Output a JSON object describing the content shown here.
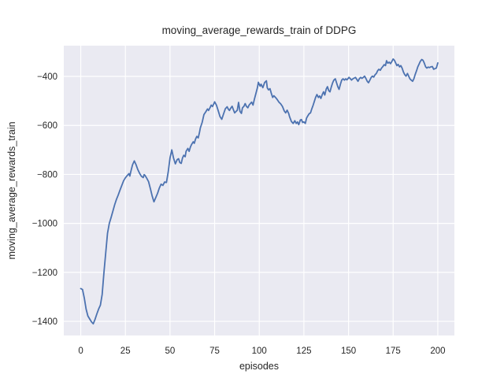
{
  "figure": {
    "background": "#ffffff",
    "plot_background": "#eaeaf2",
    "grid_color": "#ffffff",
    "text_color": "#262626"
  },
  "chart_data": {
    "type": "line",
    "title": "moving_average_rewards_train of DDPG",
    "xlabel": "episodes",
    "ylabel": "moving_average_rewards_train",
    "grid": true,
    "legend": false,
    "xlim": [
      -9.5,
      209.3
    ],
    "ylim": [
      -1457.6,
      -274.6
    ],
    "x_ticks": [
      {
        "v": 0,
        "label": "0"
      },
      {
        "v": 25,
        "label": "25"
      },
      {
        "v": 50,
        "label": "50"
      },
      {
        "v": 75,
        "label": "75"
      },
      {
        "v": 100,
        "label": "100"
      },
      {
        "v": 125,
        "label": "125"
      },
      {
        "v": 150,
        "label": "150"
      },
      {
        "v": 175,
        "label": "175"
      },
      {
        "v": 200,
        "label": "200"
      }
    ],
    "y_ticks": [
      {
        "v": -400,
        "label": "−400"
      },
      {
        "v": -600,
        "label": "−600"
      },
      {
        "v": -800,
        "label": "−800"
      },
      {
        "v": -1000,
        "label": "−1000"
      },
      {
        "v": -1200,
        "label": "−1200"
      },
      {
        "v": -1400,
        "label": "−1400"
      }
    ],
    "series": [
      {
        "name": "moving_average_rewards_train",
        "color": "#4c72b0",
        "line_width": 1.8,
        "points": [
          [
            0,
            -1266
          ],
          [
            1,
            -1270
          ],
          [
            2,
            -1305
          ],
          [
            3,
            -1350
          ],
          [
            4,
            -1378
          ],
          [
            5,
            -1390
          ],
          [
            6,
            -1402
          ],
          [
            7,
            -1410
          ],
          [
            8,
            -1392
          ],
          [
            9,
            -1370
          ],
          [
            10,
            -1350
          ],
          [
            11,
            -1334
          ],
          [
            12,
            -1290
          ],
          [
            13,
            -1200
          ],
          [
            14,
            -1120
          ],
          [
            15,
            -1040
          ],
          [
            16,
            -1000
          ],
          [
            17,
            -976
          ],
          [
            18,
            -950
          ],
          [
            19,
            -924
          ],
          [
            20,
            -902
          ],
          [
            21,
            -884
          ],
          [
            22,
            -864
          ],
          [
            23,
            -845
          ],
          [
            24,
            -826
          ],
          [
            25,
            -814
          ],
          [
            26,
            -805
          ],
          [
            27,
            -797
          ],
          [
            27.5,
            -807
          ],
          [
            28,
            -790
          ],
          [
            29,
            -761
          ],
          [
            30,
            -745
          ],
          [
            31,
            -761
          ],
          [
            32,
            -781
          ],
          [
            33,
            -796
          ],
          [
            34,
            -808
          ],
          [
            35,
            -813
          ],
          [
            35.5,
            -801
          ],
          [
            36,
            -804
          ],
          [
            37,
            -816
          ],
          [
            38,
            -830
          ],
          [
            39,
            -858
          ],
          [
            40,
            -888
          ],
          [
            41,
            -912
          ],
          [
            42,
            -895
          ],
          [
            43,
            -878
          ],
          [
            44,
            -856
          ],
          [
            45,
            -840
          ],
          [
            46,
            -845
          ],
          [
            47,
            -831
          ],
          [
            48,
            -833
          ],
          [
            49,
            -790
          ],
          [
            50,
            -733
          ],
          [
            51,
            -700
          ],
          [
            52,
            -734
          ],
          [
            53,
            -757
          ],
          [
            54,
            -740
          ],
          [
            54.8,
            -736
          ],
          [
            55.5,
            -752
          ],
          [
            56.3,
            -755
          ],
          [
            57,
            -733
          ],
          [
            57.7,
            -722
          ],
          [
            58.5,
            -728
          ],
          [
            59,
            -706
          ],
          [
            60,
            -694
          ],
          [
            60.7,
            -706
          ],
          [
            61.4,
            -689
          ],
          [
            62,
            -679
          ],
          [
            63,
            -667
          ],
          [
            63.6,
            -673
          ],
          [
            64.3,
            -656
          ],
          [
            65,
            -645
          ],
          [
            65.8,
            -651
          ],
          [
            66.5,
            -629
          ],
          [
            67,
            -610
          ],
          [
            68,
            -588
          ],
          [
            69,
            -556
          ],
          [
            70,
            -545
          ],
          [
            71,
            -533
          ],
          [
            71.6,
            -539
          ],
          [
            72.4,
            -528
          ],
          [
            73.1,
            -517
          ],
          [
            73.8,
            -523
          ],
          [
            74.6,
            -511
          ],
          [
            75,
            -504
          ],
          [
            76,
            -517
          ],
          [
            77,
            -540
          ],
          [
            78,
            -564
          ],
          [
            79,
            -575
          ],
          [
            80,
            -553
          ],
          [
            81,
            -532
          ],
          [
            82,
            -524
          ],
          [
            82.6,
            -533
          ],
          [
            83.3,
            -539
          ],
          [
            84,
            -530
          ],
          [
            84.8,
            -522
          ],
          [
            85.5,
            -536
          ],
          [
            86.2,
            -549
          ],
          [
            87,
            -543
          ],
          [
            87.7,
            -538
          ],
          [
            88.4,
            -506
          ],
          [
            89.2,
            -543
          ],
          [
            90,
            -551
          ],
          [
            90.6,
            -528
          ],
          [
            91.4,
            -522
          ],
          [
            92.1,
            -511
          ],
          [
            92.8,
            -522
          ],
          [
            93.6,
            -528
          ],
          [
            94.3,
            -517
          ],
          [
            95,
            -511
          ],
          [
            95.7,
            -505
          ],
          [
            96.5,
            -517
          ],
          [
            97.2,
            -495
          ],
          [
            98,
            -473
          ],
          [
            99,
            -445
          ],
          [
            99.5,
            -424
          ],
          [
            100.5,
            -440
          ],
          [
            101,
            -432
          ],
          [
            102,
            -446
          ],
          [
            103,
            -425
          ],
          [
            104,
            -418
          ],
          [
            104.5,
            -447
          ],
          [
            105.2,
            -455
          ],
          [
            106,
            -450
          ],
          [
            106.7,
            -468
          ],
          [
            107.5,
            -486
          ],
          [
            108.2,
            -479
          ],
          [
            109,
            -485
          ],
          [
            110,
            -494
          ],
          [
            111,
            -505
          ],
          [
            112,
            -512
          ],
          [
            113,
            -523
          ],
          [
            114,
            -541
          ],
          [
            114.8,
            -549
          ],
          [
            115.6,
            -538
          ],
          [
            116.5,
            -552
          ],
          [
            117,
            -565
          ],
          [
            118,
            -584
          ],
          [
            119,
            -592
          ],
          [
            119.9,
            -581
          ],
          [
            120.7,
            -592
          ],
          [
            121.4,
            -586
          ],
          [
            122.1,
            -597
          ],
          [
            123,
            -578
          ],
          [
            123.6,
            -576
          ],
          [
            124.3,
            -588
          ],
          [
            125,
            -586
          ],
          [
            125.8,
            -592
          ],
          [
            126.5,
            -570
          ],
          [
            127.2,
            -561
          ],
          [
            128,
            -552
          ],
          [
            128.7,
            -549
          ],
          [
            129.4,
            -533
          ],
          [
            130.2,
            -517
          ],
          [
            130.9,
            -501
          ],
          [
            131.6,
            -485
          ],
          [
            132.3,
            -474
          ],
          [
            133.1,
            -486
          ],
          [
            133.8,
            -480
          ],
          [
            134.5,
            -490
          ],
          [
            135.3,
            -474
          ],
          [
            136,
            -463
          ],
          [
            136.7,
            -476
          ],
          [
            137.5,
            -452
          ],
          [
            138.2,
            -442
          ],
          [
            138.9,
            -458
          ],
          [
            139.6,
            -463
          ],
          [
            140.4,
            -442
          ],
          [
            141.1,
            -426
          ],
          [
            141.8,
            -415
          ],
          [
            142.6,
            -410
          ],
          [
            143.3,
            -426
          ],
          [
            144,
            -442
          ],
          [
            144.7,
            -453
          ],
          [
            145.5,
            -431
          ],
          [
            146.2,
            -415
          ],
          [
            146.9,
            -410
          ],
          [
            147.7,
            -415
          ],
          [
            148.4,
            -410
          ],
          [
            149.1,
            -414
          ],
          [
            150.3,
            -404
          ],
          [
            151.7,
            -415
          ],
          [
            152.4,
            -410
          ],
          [
            153.9,
            -404
          ],
          [
            154.6,
            -412
          ],
          [
            155.3,
            -420
          ],
          [
            156.1,
            -409
          ],
          [
            156.8,
            -404
          ],
          [
            157.5,
            -408
          ],
          [
            158.3,
            -404
          ],
          [
            159,
            -399
          ],
          [
            159.7,
            -408
          ],
          [
            160.5,
            -420
          ],
          [
            161.2,
            -426
          ],
          [
            161.9,
            -416
          ],
          [
            162.7,
            -404
          ],
          [
            163.4,
            -399
          ],
          [
            164.1,
            -403
          ],
          [
            164.9,
            -393
          ],
          [
            165.6,
            -388
          ],
          [
            166.3,
            -377
          ],
          [
            167,
            -371
          ],
          [
            167.8,
            -375
          ],
          [
            168.5,
            -366
          ],
          [
            169.2,
            -360
          ],
          [
            170,
            -352
          ],
          [
            170.7,
            -356
          ],
          [
            171.3,
            -336
          ],
          [
            172,
            -346
          ],
          [
            172.8,
            -342
          ],
          [
            173.5,
            -348
          ],
          [
            174.2,
            -340
          ],
          [
            175,
            -329
          ],
          [
            175.7,
            -334
          ],
          [
            176.4,
            -345
          ],
          [
            177.1,
            -356
          ],
          [
            177.8,
            -351
          ],
          [
            178.6,
            -361
          ],
          [
            179.3,
            -356
          ],
          [
            180,
            -366
          ],
          [
            180.8,
            -383
          ],
          [
            181.5,
            -393
          ],
          [
            182.2,
            -399
          ],
          [
            183,
            -388
          ],
          [
            183.7,
            -399
          ],
          [
            184.4,
            -410
          ],
          [
            185.1,
            -415
          ],
          [
            185.9,
            -420
          ],
          [
            186.6,
            -410
          ],
          [
            187.3,
            -393
          ],
          [
            188.1,
            -377
          ],
          [
            188.8,
            -361
          ],
          [
            189.5,
            -350
          ],
          [
            190.2,
            -339
          ],
          [
            191,
            -331
          ],
          [
            191.7,
            -334
          ],
          [
            192.4,
            -345
          ],
          [
            193.2,
            -361
          ],
          [
            193.9,
            -366
          ],
          [
            194.6,
            -362
          ],
          [
            195.3,
            -364
          ],
          [
            196.1,
            -361
          ],
          [
            197,
            -360
          ],
          [
            197.7,
            -371
          ],
          [
            198.5,
            -368
          ],
          [
            199.2,
            -366
          ],
          [
            200,
            -345
          ]
        ]
      }
    ]
  }
}
